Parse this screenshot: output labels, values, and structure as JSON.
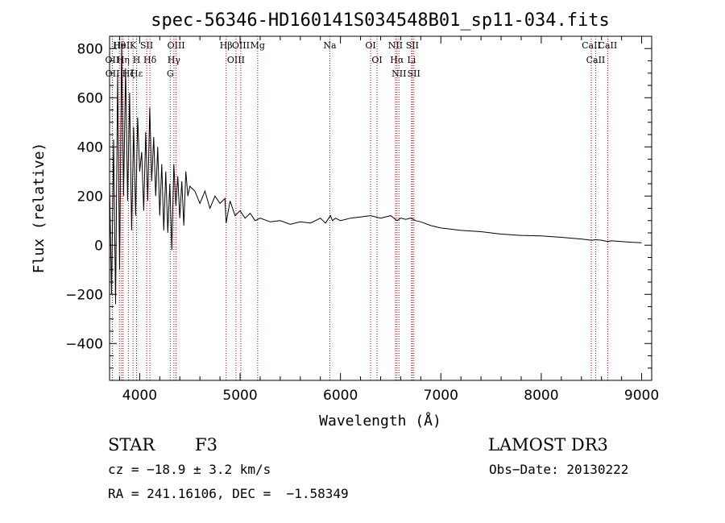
{
  "chart_data": {
    "type": "line",
    "title": "spec-56346-HD160141S034548B01_sp11-034.fits",
    "xlabel": "Wavelength (Å)",
    "ylabel": "Flux (relative)",
    "xlim": [
      3700,
      9100
    ],
    "ylim": [
      -550,
      850
    ],
    "xticks": [
      4000,
      5000,
      6000,
      7000,
      8000,
      9000
    ],
    "xtick_labels": [
      "4000",
      "5000",
      "6000",
      "7000",
      "8000",
      "9000"
    ],
    "yticks": [
      -400,
      -200,
      0,
      200,
      400,
      600,
      800
    ],
    "ytick_labels": [
      "−400",
      "−200",
      "0",
      "200",
      "400",
      "600",
      "800"
    ],
    "series": [
      {
        "name": "flux",
        "x": [
          3700,
          3720,
          3740,
          3760,
          3780,
          3800,
          3820,
          3840,
          3860,
          3880,
          3900,
          3920,
          3940,
          3960,
          3980,
          4000,
          4020,
          4040,
          4060,
          4080,
          4100,
          4120,
          4140,
          4160,
          4180,
          4200,
          4220,
          4240,
          4260,
          4280,
          4300,
          4320,
          4340,
          4360,
          4380,
          4400,
          4420,
          4440,
          4460,
          4480,
          4500,
          4550,
          4600,
          4650,
          4700,
          4750,
          4800,
          4850,
          4861,
          4900,
          4950,
          5000,
          5050,
          5100,
          5150,
          5200,
          5300,
          5400,
          5500,
          5600,
          5700,
          5800,
          5850,
          5900,
          5920,
          5950,
          6000,
          6100,
          6200,
          6300,
          6400,
          6500,
          6563,
          6600,
          6650,
          6700,
          6750,
          6800,
          6900,
          7000,
          7200,
          7400,
          7600,
          7800,
          8000,
          8200,
          8400,
          8500,
          8542,
          8600,
          8662,
          8700,
          8800,
          8900,
          9000
        ],
        "values": [
          250,
          -200,
          430,
          -240,
          700,
          -100,
          820,
          200,
          720,
          180,
          620,
          60,
          480,
          120,
          520,
          300,
          380,
          140,
          460,
          180,
          560,
          260,
          440,
          200,
          400,
          120,
          330,
          60,
          300,
          50,
          250,
          -20,
          330,
          160,
          280,
          110,
          260,
          80,
          300,
          200,
          240,
          220,
          170,
          220,
          150,
          200,
          170,
          190,
          90,
          180,
          120,
          140,
          110,
          130,
          100,
          110,
          95,
          100,
          85,
          95,
          90,
          110,
          90,
          120,
          100,
          110,
          100,
          110,
          115,
          120,
          110,
          120,
          100,
          110,
          105,
          110,
          100,
          95,
          80,
          70,
          60,
          55,
          45,
          40,
          38,
          32,
          25,
          20,
          22,
          20,
          15,
          18,
          15,
          12,
          10
        ]
      }
    ],
    "lines": [
      {
        "label": "Hθ",
        "x": 3798
      },
      {
        "label": "OII",
        "x": 3727
      },
      {
        "label": "OII",
        "x": 3729
      },
      {
        "label": "HeI",
        "x": 3820
      },
      {
        "label": "Hη",
        "x": 3835
      },
      {
        "label": "Hζ",
        "x": 3889
      },
      {
        "label": "K",
        "x": 3934
      },
      {
        "label": "H",
        "x": 3969
      },
      {
        "label": "Hε",
        "x": 3970
      },
      {
        "label": "SII",
        "x": 4070
      },
      {
        "label": "Hδ",
        "x": 4102
      },
      {
        "label": "OIII",
        "x": 4363
      },
      {
        "label": "Hγ",
        "x": 4341
      },
      {
        "label": "G",
        "x": 4305
      },
      {
        "label": "Hβ",
        "x": 4861
      },
      {
        "label": "OIII",
        "x": 4959
      },
      {
        "label": "OIII",
        "x": 5007
      },
      {
        "label": "Mg",
        "x": 5175
      },
      {
        "label": "Na",
        "x": 5894
      },
      {
        "label": "OI",
        "x": 6300
      },
      {
        "label": "OI",
        "x": 6364
      },
      {
        "label": "NII",
        "x": 6548
      },
      {
        "label": "Hα",
        "x": 6563
      },
      {
        "label": "NII",
        "x": 6583
      },
      {
        "label": "SII",
        "x": 6716
      },
      {
        "label": "Li",
        "x": 6708
      },
      {
        "label": "SII",
        "x": 6731
      },
      {
        "label": "CaII",
        "x": 8498
      },
      {
        "label": "CaII",
        "x": 8542
      },
      {
        "label": "CaII",
        "x": 8662
      }
    ]
  },
  "info": {
    "object_class": "STAR",
    "subclass": "F3",
    "survey": "LAMOST DR3",
    "cz": "cz = −18.9 ± 3.2 km/s",
    "obs_date": "Obs−Date: 20130222",
    "coords": "RA = 241.16106, DEC =  −1.58349"
  },
  "colors": {
    "line_marker": "#cc0000",
    "spectrum": "#000000",
    "axes": "#000000"
  }
}
